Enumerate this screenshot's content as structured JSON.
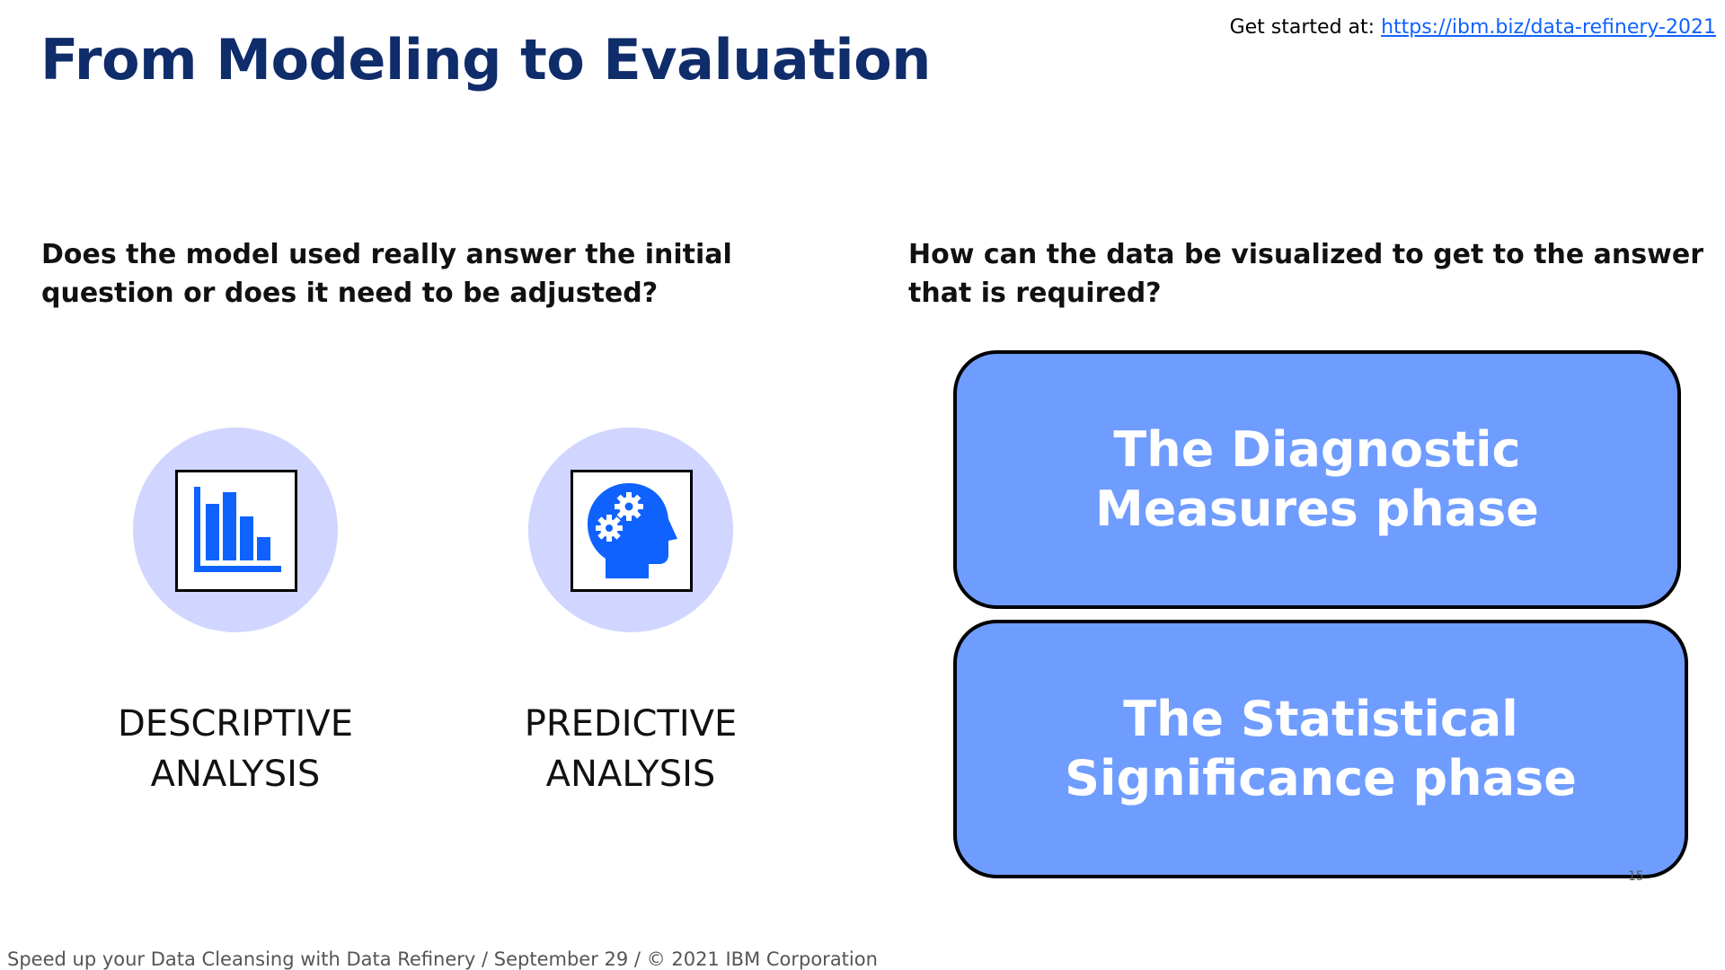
{
  "header": {
    "title": "From Modeling to Evaluation",
    "get_started_label": "Get started at:",
    "get_started_link": "https://ibm.biz/data-refinery-2021"
  },
  "questions": {
    "left": "Does the model used really answer the initial question or does it need to be adjusted?",
    "right": "How can the data be visualized to get to the answer that is required?"
  },
  "analyses": [
    {
      "label": "DESCRIPTIVE ANALYSIS",
      "icon": "bar-chart-icon"
    },
    {
      "label": "PREDICTIVE ANALYSIS",
      "icon": "head-gears-icon"
    }
  ],
  "phases": [
    {
      "label": "The Diagnostic Measures phase"
    },
    {
      "label": "The Statistical Significance phase"
    }
  ],
  "page_number": "15",
  "footer": "Speed up your Data Cleansing with Data Refinery / September 29 / © 2021 IBM Corporation",
  "colors": {
    "title": "#0f2c6b",
    "link": "#0f62fe",
    "circle": "#d0d6ff",
    "phase_fill": "#6f9cff",
    "icon_blue": "#0f62fe"
  }
}
